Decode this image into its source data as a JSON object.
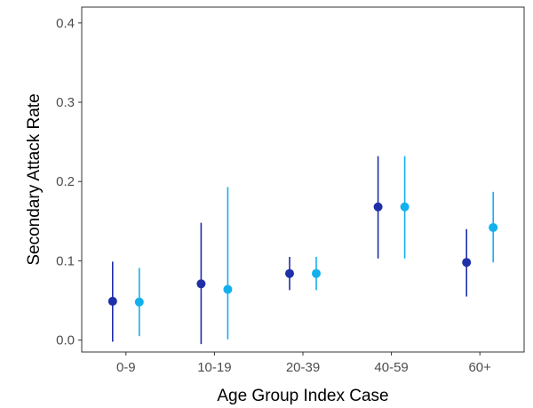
{
  "chart_data": {
    "type": "scatter",
    "xlabel": "Age Group Index Case",
    "ylabel": "Secondary Attack Rate",
    "categories": [
      "0-9",
      "10-19",
      "20-39",
      "40-59",
      "60+"
    ],
    "ylim": [
      -0.015,
      0.42
    ],
    "yticks": [
      0.0,
      0.1,
      0.2,
      0.3,
      0.4
    ],
    "ytick_labels": [
      "0.0",
      "0.1",
      "0.2",
      "0.3",
      "0.4"
    ],
    "grid": false,
    "legend": "none",
    "series": [
      {
        "color": "#1f2fa8",
        "values": [
          0.049,
          0.071,
          0.084,
          0.168,
          0.098
        ],
        "lower": [
          -0.002,
          -0.005,
          0.063,
          0.103,
          0.055
        ],
        "upper": [
          0.099,
          0.148,
          0.105,
          0.232,
          0.14
        ]
      },
      {
        "color": "#13b0ee",
        "values": [
          0.048,
          0.064,
          0.084,
          0.168,
          0.142
        ],
        "lower": [
          0.005,
          0.001,
          0.063,
          0.103,
          0.098
        ],
        "upper": [
          0.091,
          0.193,
          0.105,
          0.232,
          0.187
        ]
      }
    ]
  }
}
